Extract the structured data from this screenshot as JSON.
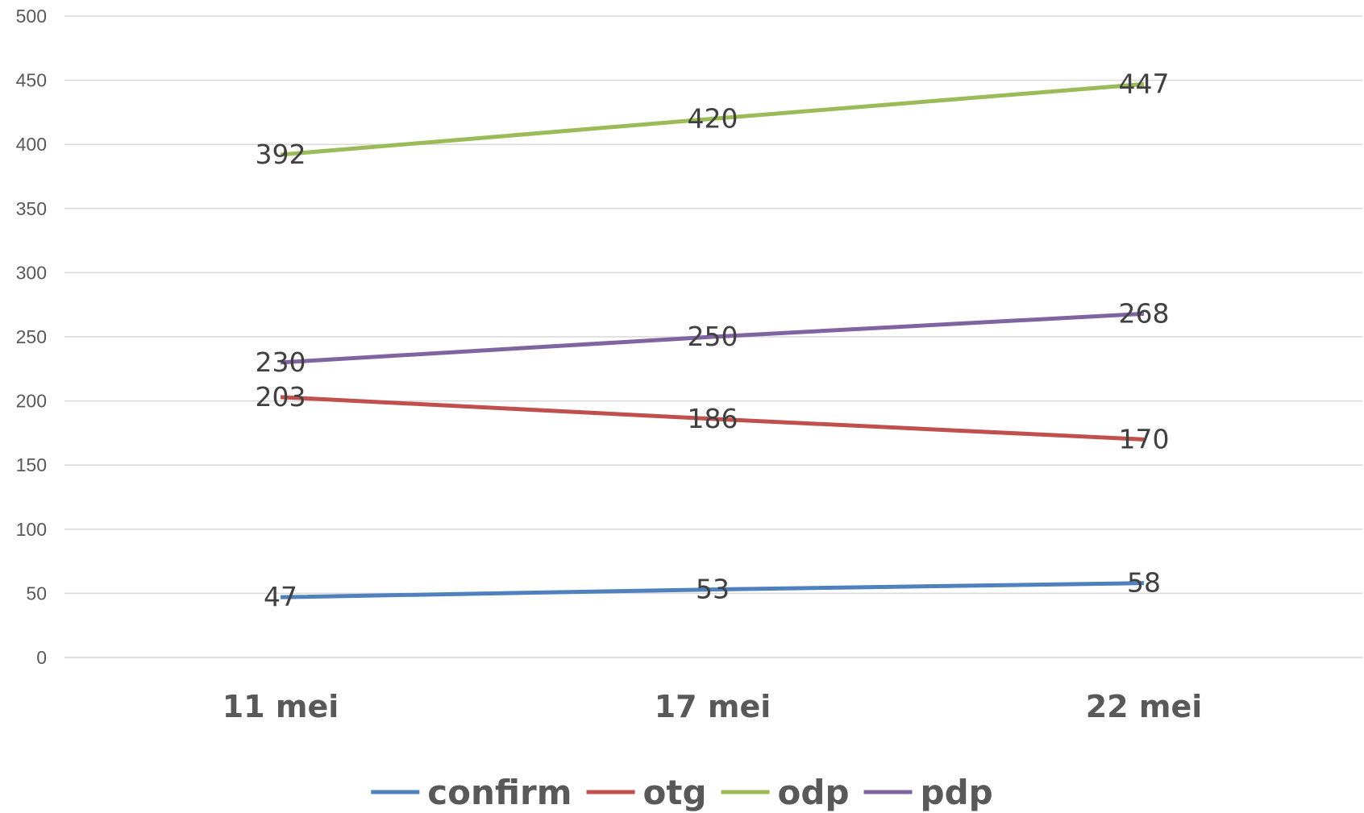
{
  "chart_data": {
    "type": "line",
    "title": "",
    "xlabel": "",
    "ylabel": "",
    "categories": [
      "11 mei",
      "17 mei",
      "22 mei"
    ],
    "ylim": [
      0,
      500
    ],
    "yticks": [
      0,
      50,
      100,
      150,
      200,
      250,
      300,
      350,
      400,
      450,
      500
    ],
    "grid": true,
    "legend_position": "bottom",
    "data_labels": true,
    "series": [
      {
        "name": "confirm",
        "values": [
          47,
          53,
          58
        ],
        "color": "#4f81bd"
      },
      {
        "name": "otg",
        "values": [
          203,
          186,
          170
        ],
        "color": "#c0504d"
      },
      {
        "name": "odp",
        "values": [
          392,
          420,
          447
        ],
        "color": "#9bbb59"
      },
      {
        "name": "pdp",
        "values": [
          230,
          250,
          268
        ],
        "color": "#8064a2"
      }
    ]
  }
}
